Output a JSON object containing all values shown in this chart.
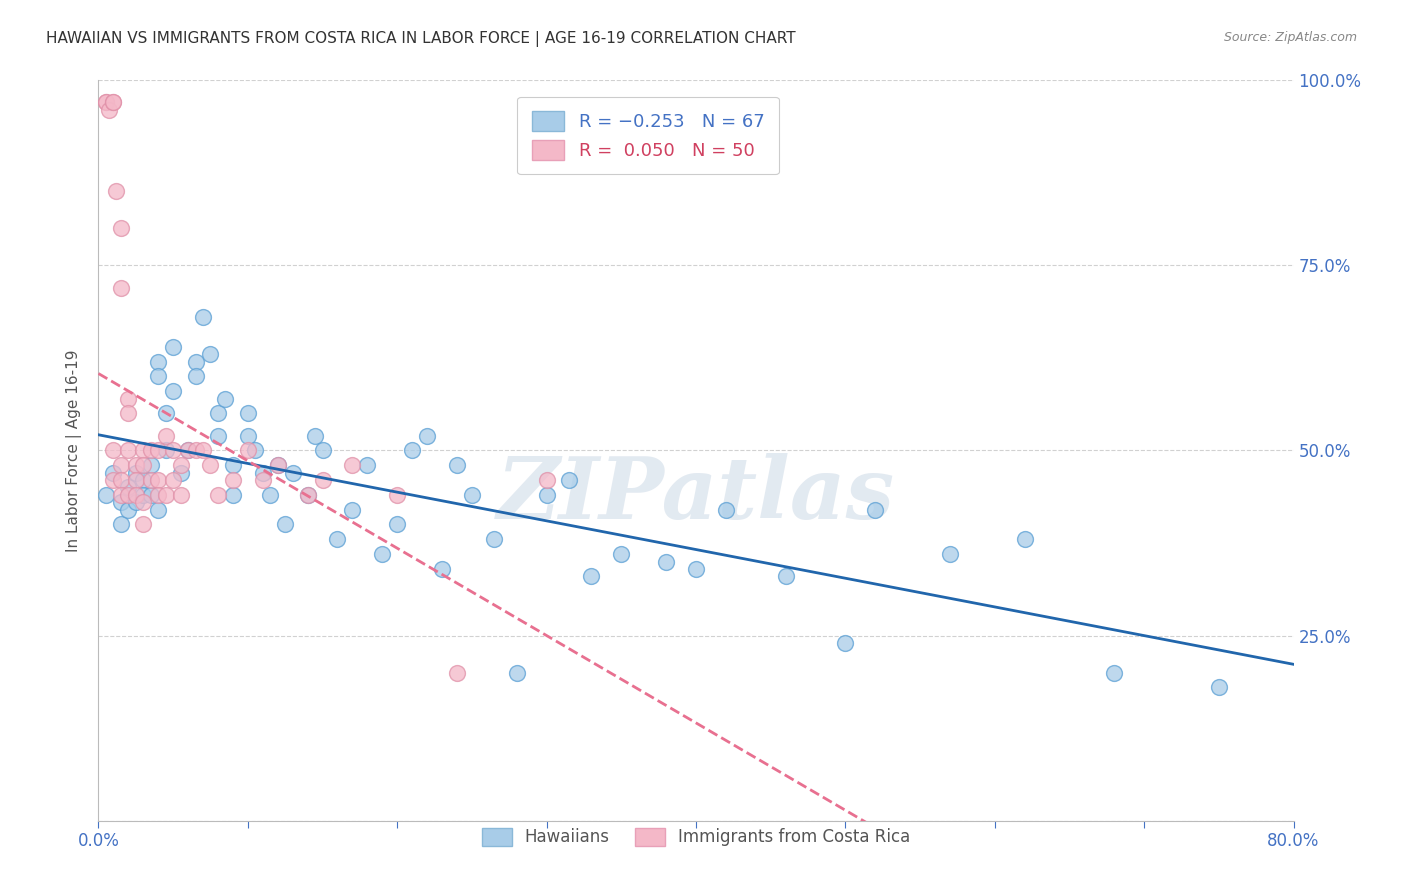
{
  "title": "HAWAIIAN VS IMMIGRANTS FROM COSTA RICA IN LABOR FORCE | AGE 16-19 CORRELATION CHART",
  "source": "Source: ZipAtlas.com",
  "ylabel": "In Labor Force | Age 16-19",
  "x_min": 0.0,
  "x_max": 0.8,
  "y_min": 0.0,
  "y_max": 1.0,
  "hawaiians_R": -0.253,
  "hawaiians_N": 67,
  "costa_rica_R": 0.05,
  "costa_rica_N": 50,
  "watermark": "ZIPatlas",
  "blue_color": "#a8cce8",
  "pink_color": "#f4b8c8",
  "blue_line_color": "#2166ac",
  "pink_line_color": "#e87090",
  "hawaiians_x": [
    0.005,
    0.01,
    0.015,
    0.015,
    0.02,
    0.02,
    0.025,
    0.025,
    0.03,
    0.03,
    0.035,
    0.035,
    0.04,
    0.04,
    0.04,
    0.045,
    0.045,
    0.05,
    0.05,
    0.055,
    0.06,
    0.065,
    0.065,
    0.07,
    0.075,
    0.08,
    0.08,
    0.085,
    0.09,
    0.09,
    0.1,
    0.1,
    0.105,
    0.11,
    0.115,
    0.12,
    0.125,
    0.13,
    0.14,
    0.145,
    0.15,
    0.16,
    0.17,
    0.18,
    0.19,
    0.2,
    0.21,
    0.22,
    0.23,
    0.24,
    0.25,
    0.265,
    0.28,
    0.3,
    0.315,
    0.33,
    0.35,
    0.38,
    0.4,
    0.42,
    0.46,
    0.5,
    0.52,
    0.57,
    0.62,
    0.68,
    0.75
  ],
  "hawaiians_y": [
    0.44,
    0.47,
    0.43,
    0.4,
    0.45,
    0.42,
    0.47,
    0.43,
    0.46,
    0.44,
    0.48,
    0.44,
    0.62,
    0.6,
    0.42,
    0.55,
    0.5,
    0.64,
    0.58,
    0.47,
    0.5,
    0.62,
    0.6,
    0.68,
    0.63,
    0.55,
    0.52,
    0.57,
    0.48,
    0.44,
    0.55,
    0.52,
    0.5,
    0.47,
    0.44,
    0.48,
    0.4,
    0.47,
    0.44,
    0.52,
    0.5,
    0.38,
    0.42,
    0.48,
    0.36,
    0.4,
    0.5,
    0.52,
    0.34,
    0.48,
    0.44,
    0.38,
    0.2,
    0.44,
    0.46,
    0.33,
    0.36,
    0.35,
    0.34,
    0.42,
    0.33,
    0.24,
    0.42,
    0.36,
    0.38,
    0.2,
    0.18
  ],
  "costa_rica_x": [
    0.005,
    0.005,
    0.007,
    0.01,
    0.01,
    0.01,
    0.01,
    0.012,
    0.015,
    0.015,
    0.015,
    0.015,
    0.015,
    0.02,
    0.02,
    0.02,
    0.02,
    0.025,
    0.025,
    0.025,
    0.03,
    0.03,
    0.03,
    0.03,
    0.035,
    0.035,
    0.04,
    0.04,
    0.04,
    0.045,
    0.045,
    0.05,
    0.05,
    0.055,
    0.055,
    0.06,
    0.065,
    0.07,
    0.075,
    0.08,
    0.09,
    0.1,
    0.11,
    0.12,
    0.14,
    0.15,
    0.17,
    0.2,
    0.24,
    0.3
  ],
  "costa_rica_y": [
    0.97,
    0.97,
    0.96,
    0.97,
    0.97,
    0.5,
    0.46,
    0.85,
    0.8,
    0.72,
    0.48,
    0.46,
    0.44,
    0.57,
    0.55,
    0.5,
    0.44,
    0.48,
    0.46,
    0.44,
    0.5,
    0.48,
    0.43,
    0.4,
    0.5,
    0.46,
    0.5,
    0.46,
    0.44,
    0.52,
    0.44,
    0.5,
    0.46,
    0.48,
    0.44,
    0.5,
    0.5,
    0.5,
    0.48,
    0.44,
    0.46,
    0.5,
    0.46,
    0.48,
    0.44,
    0.46,
    0.48,
    0.44,
    0.2,
    0.46
  ]
}
